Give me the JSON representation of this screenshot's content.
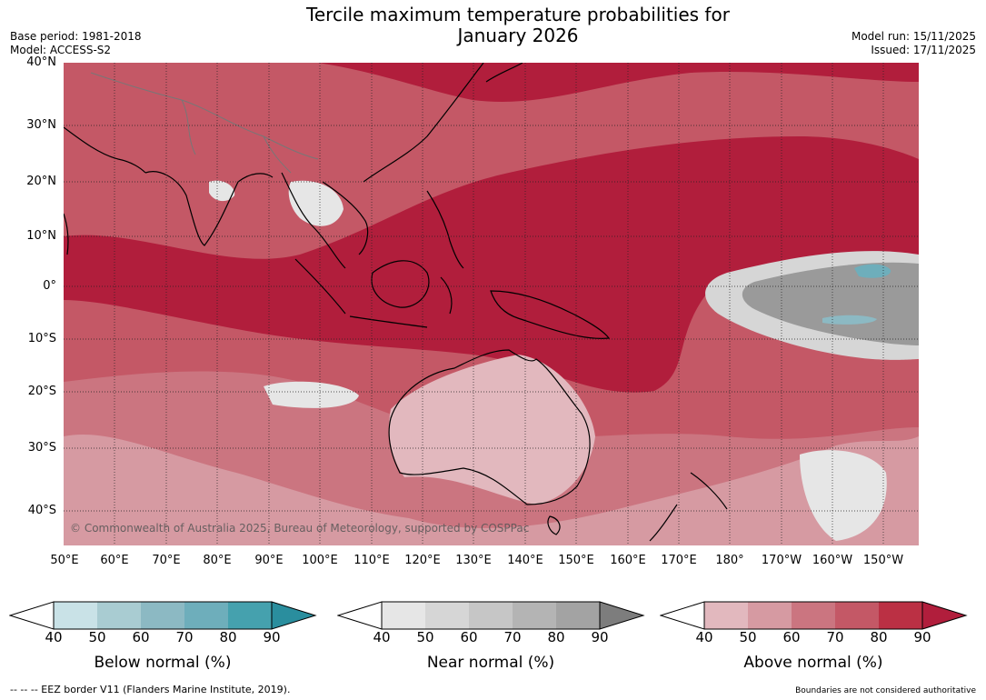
{
  "title_line1": "Tercile maximum temperature probabilities for",
  "title_line2": "January 2026",
  "meta_left": {
    "base_period": "Base period: 1981-2018",
    "model": "Model: ACCESS-S2"
  },
  "meta_right": {
    "model_run": "Model run: 15/11/2025",
    "issued": "Issued: 17/11/2025"
  },
  "map": {
    "lat_labels": [
      "40°N",
      "30°N",
      "20°N",
      "10°N",
      "0°",
      "10°S",
      "20°S",
      "30°S",
      "40°S"
    ],
    "lon_labels": [
      "50°E",
      "60°E",
      "70°E",
      "80°E",
      "90°E",
      "100°E",
      "110°E",
      "120°E",
      "130°E",
      "140°E",
      "150°E",
      "160°E",
      "170°E",
      "180°",
      "170°W",
      "160°W",
      "150°W"
    ],
    "copyright": "© Commonwealth of Australia 2025, Bureau of Meteorology, supported by COSPPac"
  },
  "colorbars": [
    {
      "title": "Below normal (%)",
      "ticks": [
        "40",
        "50",
        "60",
        "70",
        "80",
        "90"
      ],
      "colors": [
        "#c9e2e7",
        "#a9ccd2",
        "#8cb9c3",
        "#6eaebb",
        "#45a1ae",
        "#2a8e9e"
      ]
    },
    {
      "title": "Near normal (%)",
      "ticks": [
        "40",
        "50",
        "60",
        "70",
        "80",
        "90"
      ],
      "colors": [
        "#e6e6e6",
        "#d6d6d6",
        "#c6c6c6",
        "#b4b4b4",
        "#a3a3a3",
        "#7d7d7d"
      ]
    },
    {
      "title": "Above normal (%)",
      "ticks": [
        "40",
        "50",
        "60",
        "70",
        "80",
        "90"
      ],
      "colors": [
        "#e2b8be",
        "#d69aa2",
        "#cb7580",
        "#c45866",
        "#bb3044",
        "#b11e3c"
      ]
    }
  ],
  "footer_left": "--  --  -- EEZ border V11 (Flanders Marine Institute, 2019).",
  "footer_right": "Boundaries are not considered authoritative"
}
